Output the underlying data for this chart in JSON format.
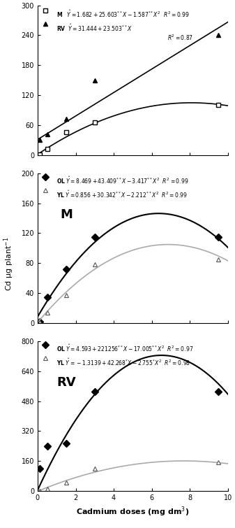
{
  "panel1": {
    "ylim": [
      0,
      300
    ],
    "yticks": [
      0,
      60,
      120,
      180,
      240,
      300
    ],
    "xlim": [
      0,
      10
    ],
    "xticks": [
      0,
      2,
      4,
      6,
      8,
      10
    ],
    "M_coef": [
      1.682,
      25.603,
      -1.587
    ],
    "RV_coef": [
      31.444,
      23.503,
      0
    ],
    "M_data_x": [
      0.1,
      0.5,
      1.5,
      3.0,
      9.5
    ],
    "M_data_y": [
      2,
      12,
      46,
      65,
      100
    ],
    "RV_data_x": [
      0.1,
      0.5,
      1.5,
      3.0,
      9.5
    ],
    "RV_data_y": [
      30,
      42,
      72,
      150,
      240
    ]
  },
  "panel2": {
    "ylim": [
      0,
      200
    ],
    "yticks": [
      0,
      40,
      80,
      120,
      160,
      200
    ],
    "xlim": [
      0,
      10
    ],
    "xticks": [
      0,
      2,
      4,
      6,
      8,
      10
    ],
    "OL_coef": [
      8.469,
      43.409,
      -3.417
    ],
    "YL_coef": [
      0.856,
      30.342,
      -2.212
    ],
    "OL_data_x": [
      0.1,
      0.5,
      1.5,
      3.0,
      9.5
    ],
    "OL_data_y": [
      2,
      35,
      72,
      115,
      115
    ],
    "YL_data_x": [
      0.1,
      0.5,
      1.5,
      3.0,
      9.5
    ],
    "YL_data_y": [
      1,
      14,
      37,
      78,
      85
    ],
    "label": "M"
  },
  "panel3": {
    "ylim": [
      0,
      800
    ],
    "yticks": [
      0,
      160,
      320,
      480,
      640,
      800
    ],
    "xlim": [
      0,
      10
    ],
    "xticks": [
      0,
      2,
      4,
      6,
      8,
      10
    ],
    "OL_coef": [
      4.593,
      221.256,
      -17.005
    ],
    "YL_coef": [
      -1.3139,
      42.268,
      -2.755
    ],
    "OL_data_x": [
      0.1,
      0.5,
      1.5,
      3.0,
      9.5
    ],
    "OL_data_y": [
      120,
      240,
      255,
      530,
      530
    ],
    "YL_data_x": [
      0.1,
      0.5,
      1.5,
      3.0,
      9.5
    ],
    "YL_data_y": [
      0,
      10,
      45,
      120,
      155
    ],
    "label": "RV"
  },
  "ylabel": "Cd μg plant$^{-1}$",
  "xlabel": "Cadmium doses (mg dm$^3$)",
  "bg_color": "#ffffff"
}
